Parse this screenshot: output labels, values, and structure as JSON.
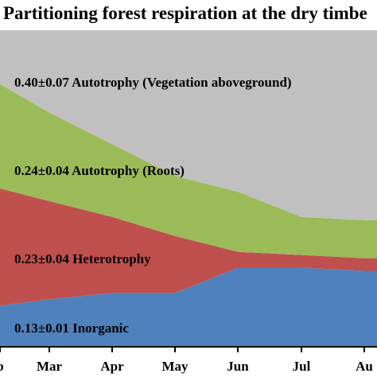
{
  "chart_data": {
    "type": "area",
    "stacked": true,
    "title": "Partitioning forest respiration at the dry timbe",
    "xlabel": "",
    "ylabel": "",
    "x_tick_labels": [
      "b",
      "Mar",
      "Apr",
      "May",
      "Jun",
      "Jul",
      "Au"
    ],
    "series": [
      {
        "name": "Inorganic",
        "label": "0.13±0.01 Inorganic",
        "color": "#4f81bd",
        "values": [
          0.13,
          0.15,
          0.17,
          0.17,
          0.25,
          0.25,
          0.24
        ]
      },
      {
        "name": "Heterotrophy",
        "label": "0.23±0.04 Heterotrophy",
        "color": "#c0504d",
        "values": [
          0.37,
          0.31,
          0.24,
          0.18,
          0.05,
          0.04,
          0.04
        ]
      },
      {
        "name": "Autotrophy (Roots)",
        "label": "0.24±0.04 Autotrophy (Roots)",
        "color": "#9bbb59",
        "values": [
          0.33,
          0.28,
          0.23,
          0.19,
          0.19,
          0.12,
          0.12
        ]
      },
      {
        "name": "Autotrophy (Vegetation aboveground)",
        "label": "0.40±0.07 Autotrophy (Vegetation aboveground)",
        "color": "#c0c0c0",
        "values": [
          0.17,
          0.26,
          0.36,
          0.46,
          0.51,
          0.59,
          0.6
        ]
      }
    ],
    "ylim": [
      0,
      1
    ],
    "grid": false,
    "legend": "none"
  }
}
